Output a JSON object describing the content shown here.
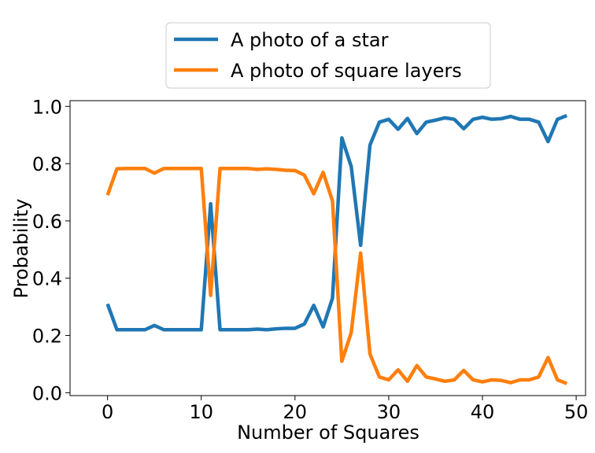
{
  "chart_data": {
    "type": "line",
    "title": "",
    "xlabel": "Number of Squares",
    "ylabel": "Probability",
    "xlim": [
      -4,
      51
    ],
    "ylim": [
      -0.01,
      1.02
    ],
    "xticks": [
      0,
      10,
      20,
      30,
      40,
      50
    ],
    "xtick_labels": [
      "0",
      "10",
      "20",
      "30",
      "40",
      "50"
    ],
    "yticks": [
      0.0,
      0.2,
      0.4,
      0.6,
      0.8,
      1.0
    ],
    "ytick_labels": [
      "0.0",
      "0.2",
      "0.4",
      "0.6",
      "0.8",
      "1.0"
    ],
    "grid": false,
    "legend_position": "top-center, above plot",
    "x": [
      0,
      1,
      2,
      3,
      4,
      5,
      6,
      7,
      8,
      9,
      10,
      11,
      12,
      13,
      14,
      15,
      16,
      17,
      18,
      19,
      20,
      21,
      22,
      23,
      24,
      25,
      26,
      27,
      28,
      29,
      30,
      31,
      32,
      33,
      34,
      35,
      36,
      37,
      38,
      39,
      40,
      41,
      42,
      43,
      44,
      45,
      46,
      47,
      48,
      49
    ],
    "series": [
      {
        "name": "A photo of a star",
        "color": "#1f77b4",
        "values": [
          0.31,
          0.22,
          0.22,
          0.22,
          0.22,
          0.235,
          0.22,
          0.22,
          0.22,
          0.22,
          0.22,
          0.66,
          0.22,
          0.22,
          0.22,
          0.22,
          0.222,
          0.22,
          0.223,
          0.225,
          0.225,
          0.24,
          0.305,
          0.23,
          0.33,
          0.89,
          0.79,
          0.515,
          0.865,
          0.945,
          0.955,
          0.92,
          0.958,
          0.905,
          0.945,
          0.952,
          0.96,
          0.955,
          0.922,
          0.955,
          0.962,
          0.955,
          0.957,
          0.965,
          0.955,
          0.955,
          0.945,
          0.877,
          0.955,
          0.968
        ]
      },
      {
        "name": "A photo of square layers",
        "color": "#ff7f0e",
        "values": [
          0.69,
          0.782,
          0.783,
          0.783,
          0.783,
          0.767,
          0.783,
          0.783,
          0.783,
          0.783,
          0.783,
          0.34,
          0.783,
          0.783,
          0.783,
          0.783,
          0.78,
          0.782,
          0.78,
          0.777,
          0.776,
          0.76,
          0.695,
          0.77,
          0.67,
          0.11,
          0.21,
          0.488,
          0.135,
          0.055,
          0.045,
          0.08,
          0.04,
          0.095,
          0.055,
          0.048,
          0.04,
          0.045,
          0.078,
          0.045,
          0.038,
          0.045,
          0.043,
          0.035,
          0.045,
          0.045,
          0.055,
          0.123,
          0.045,
          0.032
        ]
      }
    ]
  }
}
